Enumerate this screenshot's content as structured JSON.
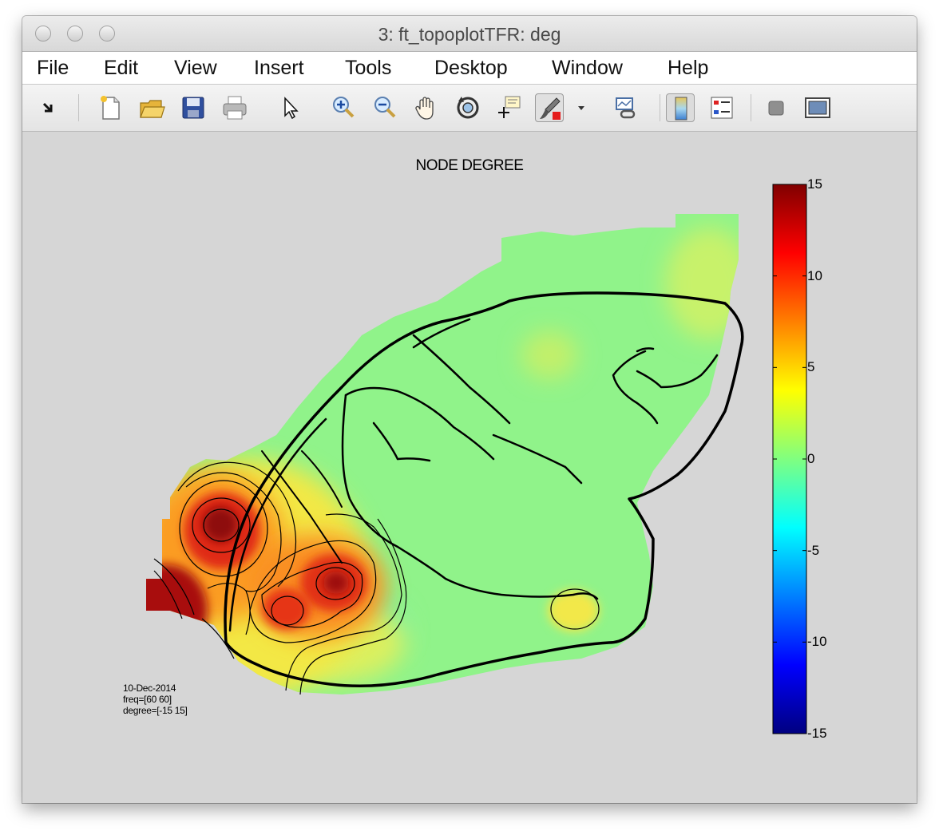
{
  "window": {
    "title": "3: ft_topoplotTFR: deg"
  },
  "menu": [
    "File",
    "Edit",
    "View",
    "Insert",
    "Tools",
    "Desktop",
    "Window",
    "Help"
  ],
  "toolbar": {
    "icons": [
      "dock-arrow-icon",
      "new-figure-icon",
      "open-file-icon",
      "save-icon",
      "print-icon",
      "pointer-icon",
      "zoom-in-icon",
      "zoom-out-icon",
      "pan-hand-icon",
      "rotate-3d-icon",
      "data-cursor-icon",
      "brush-icon",
      "brush-dropdown-icon",
      "link-plot-icon",
      "colorbar-icon",
      "legend-icon",
      "hide-tools-icon",
      "show-tools-icon"
    ]
  },
  "plot": {
    "title": "NODE DEGREE",
    "meta_lines": [
      "10-Dec-2014",
      "freq=[60 60]",
      "degree=[-15 15]"
    ]
  },
  "colorbar": {
    "ticks": [
      "15",
      "10",
      "5",
      "0",
      "-5",
      "-10",
      "-15"
    ],
    "min": -15,
    "max": 15
  },
  "chart_data": {
    "type": "heatmap",
    "title": "NODE DEGREE",
    "colormap": "jet",
    "clim": [
      -15,
      15
    ],
    "hotspots": [
      {
        "value": 15
      },
      {
        "value": 14
      },
      {
        "value": 12
      },
      {
        "value": 11
      },
      {
        "value": 4
      },
      {
        "value": 3
      }
    ]
  }
}
